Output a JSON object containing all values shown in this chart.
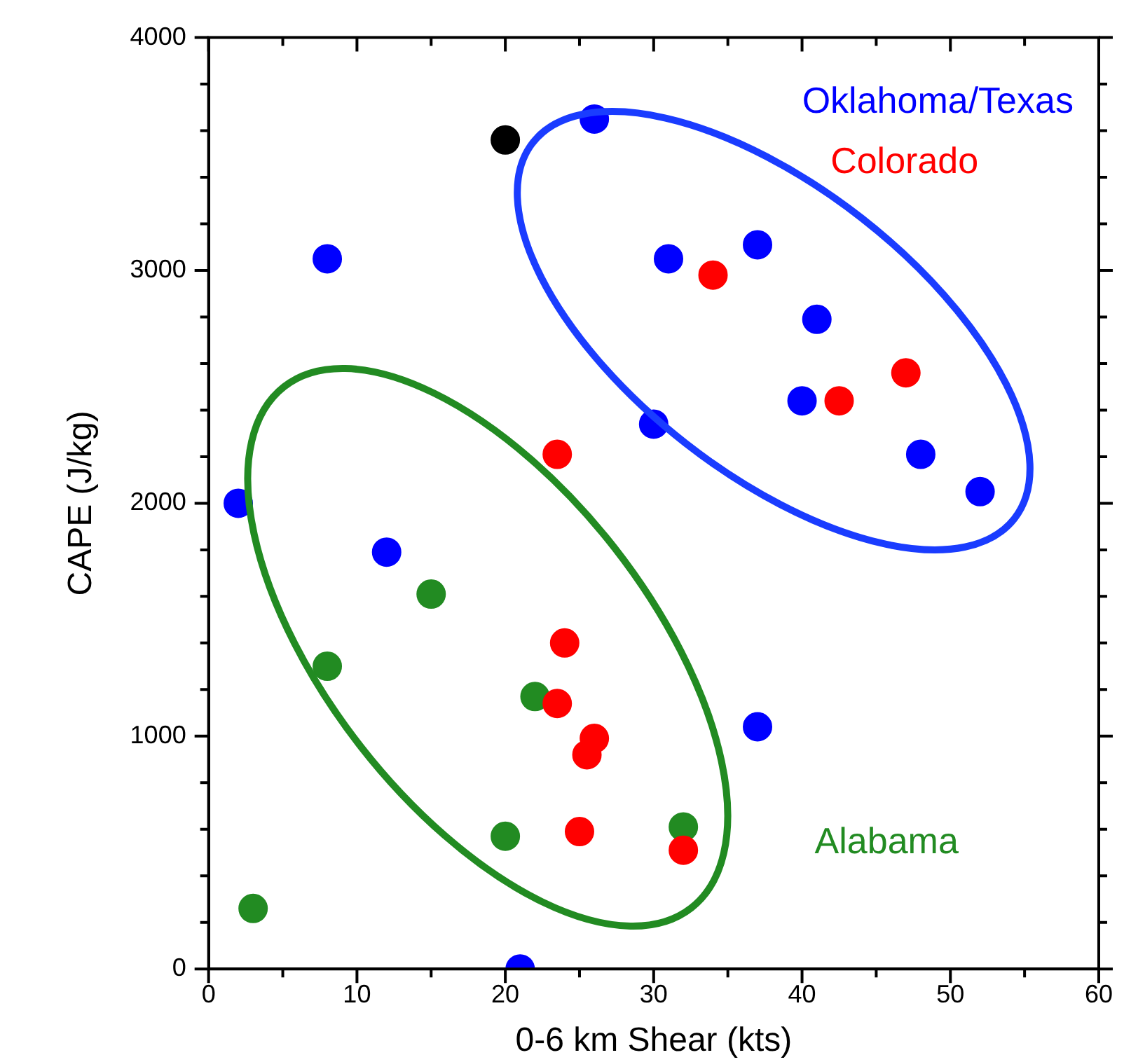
{
  "chart_data": {
    "type": "scatter",
    "xlabel": "0-6 km Shear (kts)",
    "ylabel": "CAPE (J/kg)",
    "xlim": [
      0,
      60
    ],
    "xticks": [
      0,
      10,
      20,
      30,
      40,
      50,
      60
    ],
    "ylim": [
      0,
      4000
    ],
    "yticks": [
      0,
      1000,
      2000,
      3000,
      4000
    ],
    "grid": false,
    "legend": false,
    "marker": "circle",
    "series": [
      {
        "name": "Oklahoma/Texas",
        "color": "#0000ff",
        "x": [
          2,
          8,
          12,
          26,
          31,
          30,
          37,
          40,
          41,
          48,
          52,
          37,
          21
        ],
        "values": [
          2000,
          3050,
          1790,
          3650,
          3050,
          2340,
          3110,
          2440,
          2790,
          2210,
          2050,
          1040,
          0
        ]
      },
      {
        "name": "Colorado",
        "color": "#ff0000",
        "x": [
          34,
          42.5,
          47,
          23.5,
          24,
          23.5,
          26,
          25.5,
          25,
          32
        ],
        "values": [
          2980,
          2440,
          2560,
          2210,
          1400,
          1140,
          990,
          920,
          590,
          510
        ]
      },
      {
        "name": "Alabama",
        "color": "#228b22",
        "x": [
          15,
          8,
          22,
          20,
          32,
          3
        ],
        "values": [
          1610,
          1300,
          1170,
          570,
          610,
          260
        ]
      },
      {
        "color": "#000000",
        "x": [
          20
        ],
        "values": [
          3560
        ]
      }
    ]
  }
}
